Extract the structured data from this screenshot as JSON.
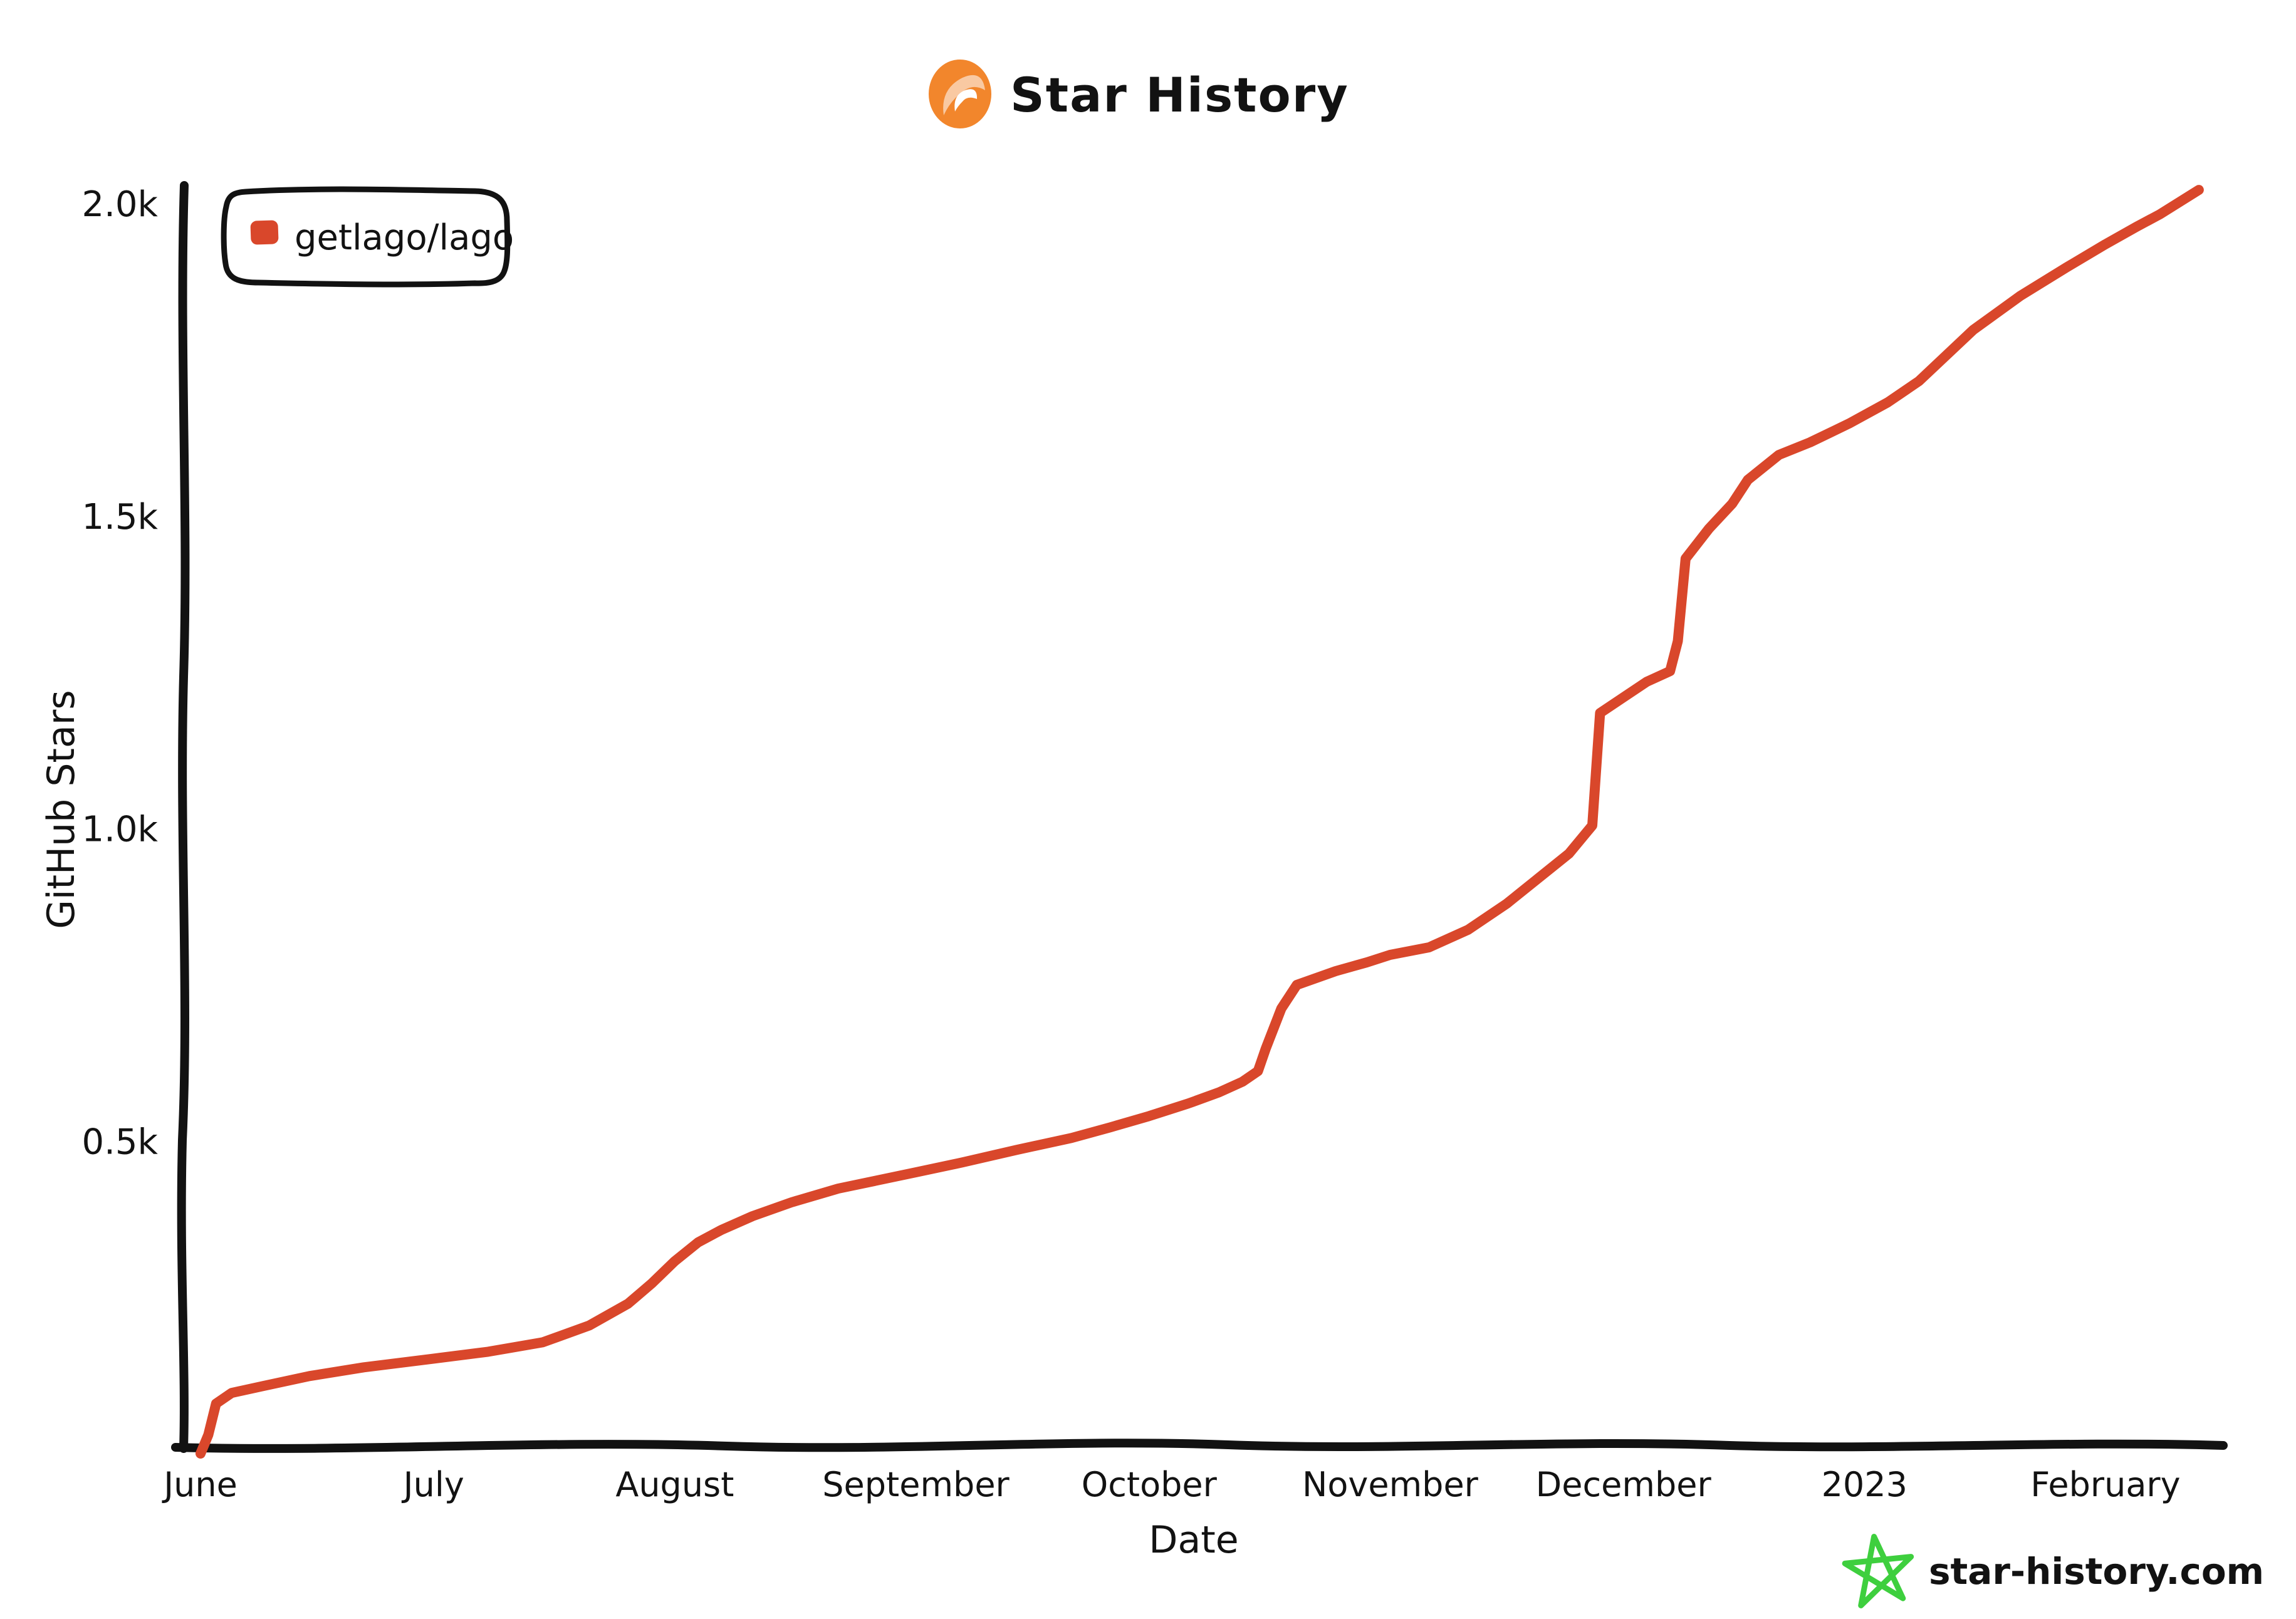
{
  "header": {
    "title": "Star History"
  },
  "legend": {
    "label": "getlago/lago",
    "marker_color": "#d9472b"
  },
  "watermark": {
    "text": "star-history.com",
    "star_color": "#3ecf3e",
    "text_color": "#6d7580"
  },
  "colors": {
    "line": "#d9472b",
    "axis": "#121212",
    "logo_orange": "#f2862c",
    "logo_light": "#f9c9a2"
  },
  "chart_data": {
    "type": "line",
    "title": "Star History",
    "series_name": "getlago/lago",
    "xlabel": "Date",
    "ylabel": "GitHub Stars",
    "legend_position": "top-left",
    "grid": false,
    "x_unit": "days since 2022-06-01",
    "x_range_days": [
      0,
      260
    ],
    "ylim": [
      0,
      2050
    ],
    "x_ticks": [
      {
        "day": 0,
        "label": "June"
      },
      {
        "day": 30,
        "label": "July"
      },
      {
        "day": 61,
        "label": "August"
      },
      {
        "day": 92,
        "label": "September"
      },
      {
        "day": 122,
        "label": "October"
      },
      {
        "day": 153,
        "label": "November"
      },
      {
        "day": 183,
        "label": "December"
      },
      {
        "day": 214,
        "label": "2023"
      },
      {
        "day": 245,
        "label": "February"
      }
    ],
    "y_ticks": [
      {
        "value": 500,
        "label": "0.5k"
      },
      {
        "value": 1000,
        "label": "1.0k"
      },
      {
        "value": 1500,
        "label": "1.5k"
      },
      {
        "value": 2000,
        "label": "2.0k"
      }
    ],
    "points": [
      [
        0,
        0
      ],
      [
        1,
        30
      ],
      [
        2,
        80
      ],
      [
        4,
        97
      ],
      [
        8,
        108
      ],
      [
        14,
        124
      ],
      [
        21,
        138
      ],
      [
        30,
        152
      ],
      [
        37,
        163
      ],
      [
        44,
        178
      ],
      [
        50,
        205
      ],
      [
        55,
        240
      ],
      [
        58,
        272
      ],
      [
        61,
        308
      ],
      [
        64,
        338
      ],
      [
        67,
        358
      ],
      [
        71,
        380
      ],
      [
        76,
        402
      ],
      [
        82,
        424
      ],
      [
        87,
        437
      ],
      [
        92,
        450
      ],
      [
        98,
        466
      ],
      [
        105,
        486
      ],
      [
        112,
        505
      ],
      [
        117,
        522
      ],
      [
        122,
        540
      ],
      [
        127,
        560
      ],
      [
        131,
        578
      ],
      [
        134,
        595
      ],
      [
        136,
        612
      ],
      [
        137,
        648
      ],
      [
        139,
        712
      ],
      [
        141,
        750
      ],
      [
        146,
        772
      ],
      [
        150,
        786
      ],
      [
        153,
        798
      ],
      [
        158,
        810
      ],
      [
        163,
        838
      ],
      [
        168,
        880
      ],
      [
        172,
        920
      ],
      [
        176,
        960
      ],
      [
        179,
        1005
      ],
      [
        180,
        1185
      ],
      [
        183,
        1210
      ],
      [
        186,
        1235
      ],
      [
        189,
        1252
      ],
      [
        190,
        1300
      ],
      [
        191,
        1432
      ],
      [
        194,
        1480
      ],
      [
        197,
        1520
      ],
      [
        199,
        1558
      ],
      [
        203,
        1598
      ],
      [
        207,
        1618
      ],
      [
        212,
        1648
      ],
      [
        217,
        1682
      ],
      [
        221,
        1716
      ],
      [
        228,
        1798
      ],
      [
        234,
        1852
      ],
      [
        240,
        1898
      ],
      [
        245,
        1935
      ],
      [
        249,
        1963
      ],
      [
        252,
        1983
      ],
      [
        257,
        2022
      ]
    ]
  }
}
